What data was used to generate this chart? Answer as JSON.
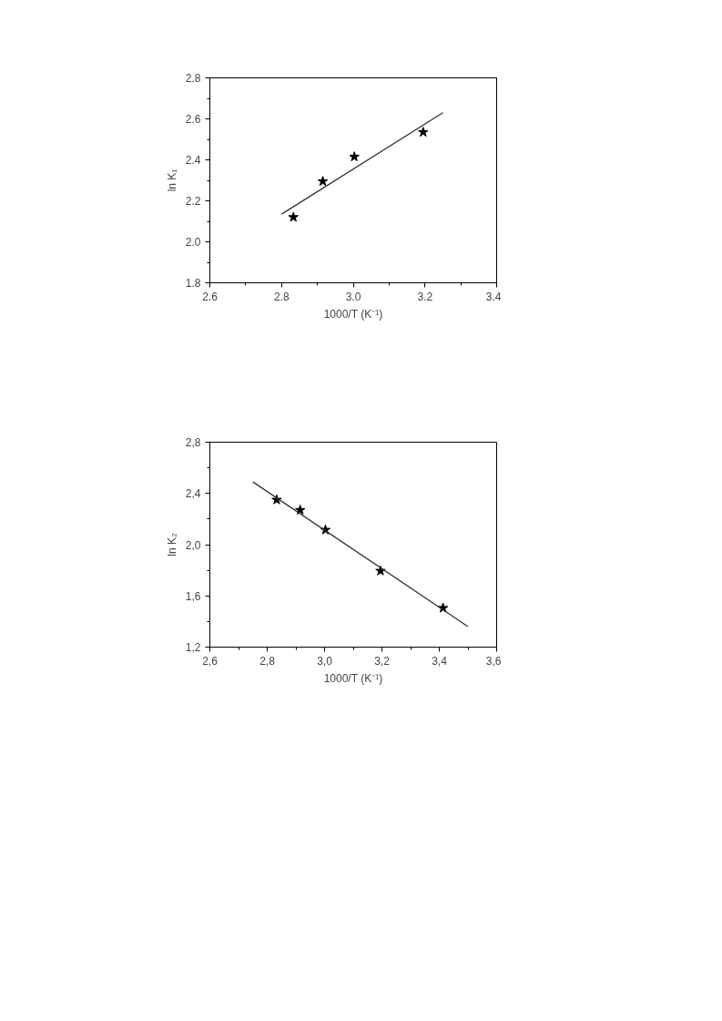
{
  "chart_data": [
    {
      "type": "scatter",
      "xlabel": "1000/T (K⁻¹)",
      "ylabel": "ln K₁",
      "grid": false,
      "xlim": [
        2.6,
        3.4
      ],
      "xticks": [
        2.6,
        2.8,
        {
          "value": 3.0,
          "label": "3.0"
        },
        3.2,
        3.4
      ],
      "ylim": [
        1.8,
        2.8
      ],
      "yticks": [
        1.8,
        {
          "value": 2.0,
          "label": "2.0"
        },
        2.2,
        2.4,
        2.6,
        2.8
      ],
      "series": [
        {
          "color": "#000000",
          "marker": "star",
          "x": [
            2.833,
            2.915,
            3.003,
            3.195
          ],
          "values": [
            2.12,
            2.295,
            2.415,
            2.535
          ]
        },
        {
          "type": "line",
          "marker": "none",
          "color": "#333333",
          "x": [
            2.8,
            3.25
          ],
          "values": [
            2.135,
            2.63
          ]
        }
      ]
    },
    {
      "type": "scatter",
      "xlabel": "1000/T (K⁻¹)",
      "ylabel": "ln K₂",
      "grid": false,
      "xlim": [
        2.6,
        3.6
      ],
      "xticks": [
        {
          "value": 2.6,
          "label": "2,6"
        },
        {
          "value": 2.8,
          "label": "2,8"
        },
        {
          "value": 3.0,
          "label": "3,0"
        },
        {
          "value": 3.2,
          "label": "3,2"
        },
        {
          "value": 3.4,
          "label": "3,4"
        },
        {
          "value": 3.6,
          "label": "3,6"
        }
      ],
      "ylim": [
        1.2,
        2.8
      ],
      "yticks": [
        {
          "value": 1.2,
          "label": "1,2"
        },
        {
          "value": 1.6,
          "label": "1,6"
        },
        {
          "value": 2.0,
          "label": "2,0"
        },
        {
          "value": 2.4,
          "label": "2,4"
        },
        {
          "value": 2.8,
          "label": "2,8"
        }
      ],
      "series": [
        {
          "color": "#000000",
          "marker": "star",
          "x": [
            2.833,
            2.915,
            3.003,
            3.195,
            3.413
          ],
          "values": [
            2.35,
            2.27,
            2.115,
            1.795,
            1.505
          ]
        },
        {
          "type": "line",
          "marker": "none",
          "color": "#333333",
          "x": [
            2.75,
            3.5
          ],
          "values": [
            2.49,
            1.36
          ]
        }
      ]
    }
  ]
}
